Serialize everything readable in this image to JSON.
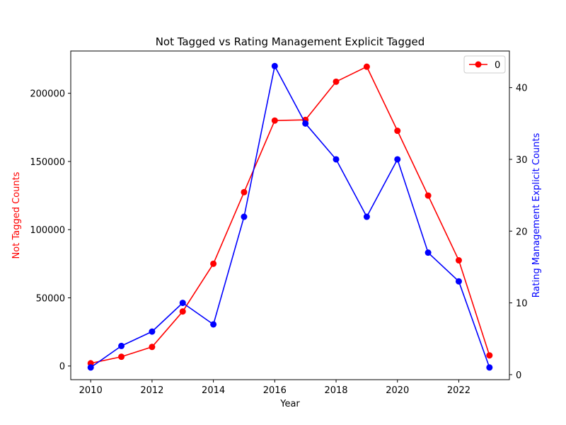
{
  "chart_data": {
    "type": "line",
    "title": "Not Tagged vs Rating Management Explicit Tagged",
    "xlabel": "Year",
    "ylabel_left": "Not Tagged Counts",
    "ylabel_right": "Rating Management Explicit Counts",
    "x": [
      2010,
      2011,
      2012,
      2013,
      2014,
      2015,
      2016,
      2017,
      2018,
      2019,
      2020,
      2021,
      2022,
      2023
    ],
    "xlim": [
      2009.35,
      2023.65
    ],
    "x_ticks": [
      2010,
      2012,
      2014,
      2016,
      2018,
      2020,
      2022
    ],
    "series": [
      {
        "name": "0",
        "axis": "left",
        "color": "#ff0000",
        "marker": "circle",
        "values": [
          2000,
          6800,
          14000,
          40000,
          75000,
          127500,
          180000,
          180500,
          208500,
          219500,
          172500,
          125000,
          77500,
          7800
        ]
      },
      {
        "axis": "right",
        "color": "#0000ff",
        "marker": "circle",
        "values": [
          1,
          4,
          6,
          10,
          7,
          22,
          43,
          35,
          30,
          22,
          30,
          17,
          13,
          1
        ]
      }
    ],
    "ylim_left": [
      -10000,
      231000
    ],
    "y_ticks_left": [
      0,
      50000,
      100000,
      150000,
      200000
    ],
    "ylim_right": [
      -0.7,
      45.1
    ],
    "y_ticks_right": [
      0,
      10,
      20,
      30,
      40
    ],
    "legend": {
      "position": "top-right",
      "entries": [
        "0"
      ]
    },
    "left_axis_label_color": "#ff0000",
    "right_axis_label_color": "#0000ff",
    "grid": false
  }
}
